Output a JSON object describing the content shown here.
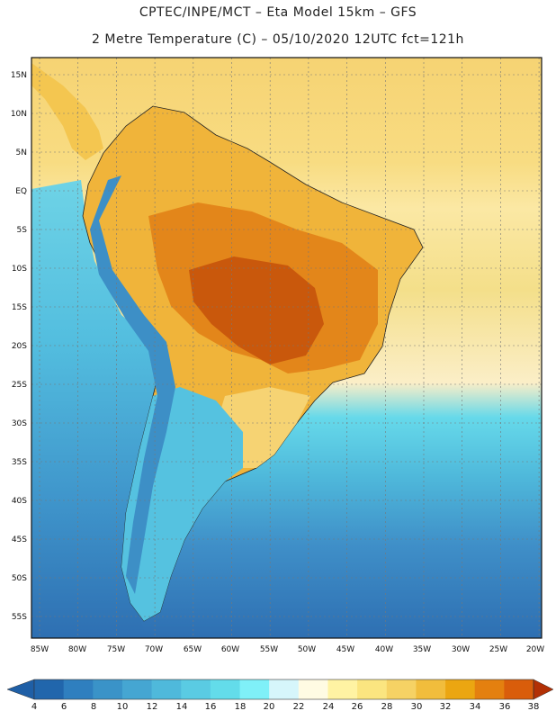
{
  "header": {
    "title_line1": "CPTEC/INPE/MCT –  Eta Model 15km – GFS",
    "title_line2": "2 Metre Temperature (C) – 05/10/2020 12UTC fct=121h"
  },
  "map": {
    "lat_labels": [
      "15N",
      "10N",
      "5N",
      "EQ",
      "5S",
      "10S",
      "15S",
      "20S",
      "25S",
      "30S",
      "35S",
      "40S",
      "45S",
      "50S",
      "55S"
    ],
    "lon_labels": [
      "85W",
      "80W",
      "75W",
      "70W",
      "65W",
      "60W",
      "55W",
      "50W",
      "45W",
      "40W",
      "35W",
      "30W",
      "25W",
      "20W"
    ]
  },
  "colorbar": {
    "labels": [
      "4",
      "6",
      "8",
      "10",
      "12",
      "14",
      "16",
      "18",
      "20",
      "22",
      "24",
      "26",
      "28",
      "30",
      "32",
      "34",
      "36",
      "38"
    ],
    "colors": [
      "#2166ac",
      "#2f7fbf",
      "#3a93c8",
      "#45a6d2",
      "#4fb9db",
      "#5acbe3",
      "#63dcea",
      "#7ff0f8",
      "#d6f6fb",
      "#fffbe3",
      "#fff3a3",
      "#fbe580",
      "#f6d264",
      "#f1bd3c",
      "#eba611",
      "#e4800f",
      "#d95d0b",
      "#c43a05"
    ],
    "under_color": "#1f5fa6",
    "over_color": "#b23005"
  },
  "legend": {
    "palette": {
      "deep_ocean": "#2e6fb2",
      "ocean": "#3f8fc8",
      "cool": "#52b9dd",
      "cyan": "#66d9ea",
      "warm": "#f6d373",
      "hot": "#ec9b1d",
      "very_hot": "#d96a10"
    }
  }
}
